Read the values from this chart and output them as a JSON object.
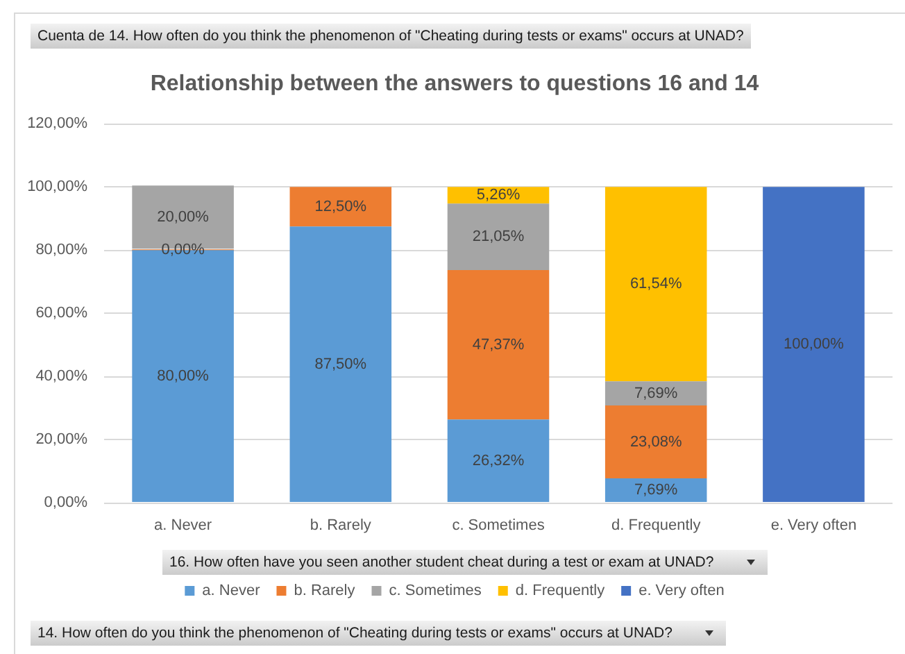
{
  "chart_data": {
    "type": "bar",
    "title": "Relationship between the answers to questions 16 and 14",
    "xlabel": "16. How often have you seen another student cheat during a test or exam at UNAD?",
    "legend_title": "14. How often do you think the phenomenon of \"Cheating during tests or exams\" occurs at UNAD?",
    "annotations": [
      "Cuenta de 14. How often do you think the phenomenon of \"Cheating during tests or exams\" occurs at UNAD?"
    ],
    "categories": [
      "a. Never",
      "b. Rarely",
      "c. Sometimes",
      "d. Frequently",
      "e. Very often"
    ],
    "stacked": true,
    "series": [
      {
        "name": "a. Never",
        "color": "#5b9bd5",
        "values": [
          80,
          87.5,
          26.32,
          7.69,
          null
        ],
        "value_labels": [
          "80,00%",
          "87,50%",
          "26,32%",
          "7,69%",
          null
        ]
      },
      {
        "name": "b. Rarely",
        "color": "#ed7d31",
        "values": [
          0,
          12.5,
          47.37,
          23.08,
          null
        ],
        "value_labels": [
          "0,00%",
          "12,50%",
          "47,37%",
          "23,08%",
          null
        ]
      },
      {
        "name": "c. Sometimes",
        "color": "#a5a5a5",
        "values": [
          20,
          null,
          21.05,
          7.69,
          null
        ],
        "value_labels": [
          "20,00%",
          null,
          "21,05%",
          "7,69%",
          null
        ]
      },
      {
        "name": "d. Frequently",
        "color": "#ffc000",
        "values": [
          null,
          null,
          5.26,
          61.54,
          null
        ],
        "value_labels": [
          null,
          null,
          "5,26%",
          "61,54%",
          null
        ]
      },
      {
        "name": "e. Very often",
        "color": "#4472c4",
        "values": [
          null,
          null,
          null,
          null,
          100
        ],
        "value_labels": [
          null,
          null,
          null,
          null,
          "100,00%"
        ]
      }
    ],
    "ylim": [
      0,
      120
    ],
    "yticks": [
      {
        "value": 0,
        "label": "0,00%"
      },
      {
        "value": 20,
        "label": "20,00%"
      },
      {
        "value": 40,
        "label": "40,00%"
      },
      {
        "value": 60,
        "label": "60,00%"
      },
      {
        "value": 80,
        "label": "80,00%"
      },
      {
        "value": 100,
        "label": "100,00%"
      },
      {
        "value": 120,
        "label": "120,00%"
      }
    ],
    "grid": "y",
    "legend": "bottom"
  }
}
